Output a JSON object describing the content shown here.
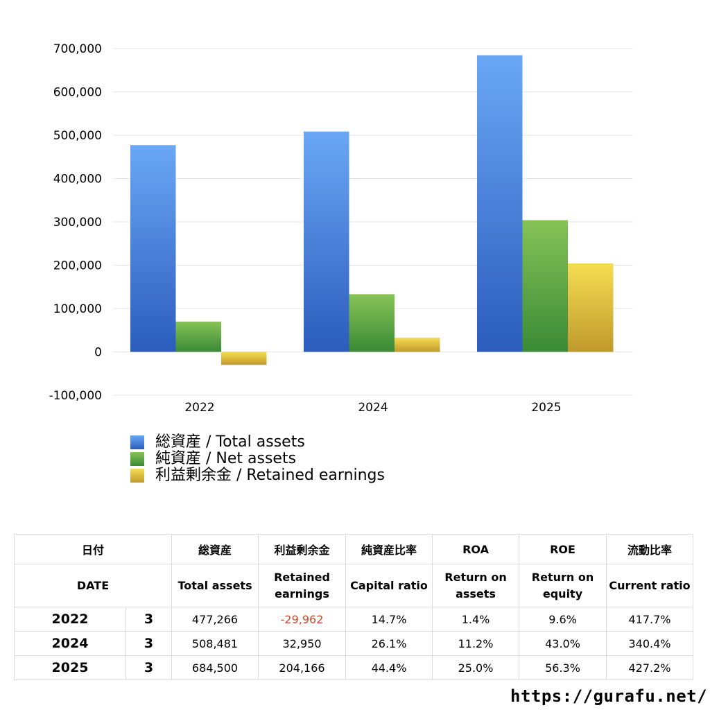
{
  "chart_data": {
    "type": "bar",
    "categories": [
      "2022",
      "2024",
      "2025"
    ],
    "series": [
      {
        "name": "総資産 / Total assets",
        "values": [
          477266,
          508481,
          684500
        ],
        "color_top": "#6aa7f5",
        "color_bottom": "#2b5cbc"
      },
      {
        "name": "純資産 / Net assets",
        "values": [
          70000,
          133000,
          304000
        ],
        "color_top": "#86c357",
        "color_bottom": "#3a8a36"
      },
      {
        "name": "利益剰余金 / Retained earnings",
        "values": [
          -29962,
          32950,
          204166
        ],
        "color_top": "#f5dd52",
        "color_bottom": "#c09a2c"
      }
    ],
    "yticks": [
      "700,000",
      "600,000",
      "500,000",
      "400,000",
      "300,000",
      "200,000",
      "100,000",
      "0",
      "-100,000"
    ],
    "ylim": [
      -100000,
      700000
    ],
    "grid": true,
    "legend_position": "bottom-left"
  },
  "table": {
    "header1": [
      "日付",
      "総資産",
      "利益剰余金",
      "純資産比率",
      "ROA",
      "ROE",
      "流動比率"
    ],
    "header2": [
      "DATE",
      "Total assets",
      "Retained earnings",
      "Capital ratio",
      "Return on assets",
      "Return on equity",
      "Current ratio"
    ],
    "rows": [
      {
        "year": "2022",
        "month": "3",
        "total_assets": "477,266",
        "retained": "-29,962",
        "capital_ratio": "14.7%",
        "roa": "1.4%",
        "roe": "9.6%",
        "current_ratio": "417.7%"
      },
      {
        "year": "2024",
        "month": "3",
        "total_assets": "508,481",
        "retained": "32,950",
        "capital_ratio": "26.1%",
        "roa": "11.2%",
        "roe": "43.0%",
        "current_ratio": "340.4%"
      },
      {
        "year": "2025",
        "month": "3",
        "total_assets": "684,500",
        "retained": "204,166",
        "capital_ratio": "44.4%",
        "roa": "25.0%",
        "roe": "56.3%",
        "current_ratio": "427.2%"
      }
    ]
  },
  "footer": {
    "url": "https://gurafu.net/"
  }
}
